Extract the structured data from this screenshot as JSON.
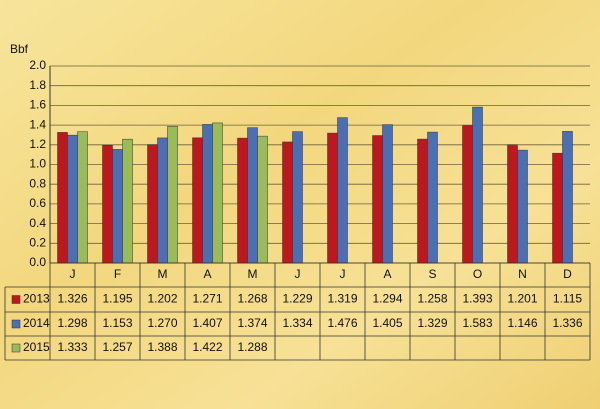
{
  "chart_data": {
    "type": "bar",
    "y_label": "Bbf",
    "categories": [
      "J",
      "F",
      "M",
      "A",
      "M",
      "J",
      "J",
      "A",
      "S",
      "O",
      "N",
      "D"
    ],
    "series": [
      {
        "name": "2013",
        "color": "#c0161e",
        "values": [
          1.326,
          1.195,
          1.202,
          1.271,
          1.268,
          1.229,
          1.319,
          1.294,
          1.258,
          1.393,
          1.201,
          1.115
        ],
        "value_labels": [
          "1.326",
          "1.195",
          "1.202",
          "1.271",
          "1.268",
          "1.229",
          "1.319",
          "1.294",
          "1.258",
          "1.393",
          "1.201",
          "1.115"
        ]
      },
      {
        "name": "2014",
        "color": "#4a6fb5",
        "values": [
          1.298,
          1.153,
          1.27,
          1.407,
          1.374,
          1.334,
          1.476,
          1.405,
          1.329,
          1.583,
          1.146,
          1.336
        ],
        "value_labels": [
          "1.298",
          "1.153",
          "1.270",
          "1.407",
          "1.374",
          "1.334",
          "1.476",
          "1.405",
          "1.329",
          "1.583",
          "1.146",
          "1.336"
        ]
      },
      {
        "name": "2015",
        "color": "#9bbb59",
        "values": [
          1.333,
          1.257,
          1.388,
          1.422,
          1.288,
          null,
          null,
          null,
          null,
          null,
          null,
          null
        ],
        "value_labels": [
          "1.333",
          "1.257",
          "1.388",
          "1.422",
          "1.288",
          null,
          null,
          null,
          null,
          null,
          null,
          null
        ]
      }
    ],
    "ylim": [
      0,
      2
    ],
    "yticks": [
      {
        "value": 0,
        "label": "0.0"
      },
      0.2,
      0.4,
      0.6,
      0.8,
      {
        "value": 1,
        "label": "1.0"
      },
      1.2,
      1.4,
      1.6,
      1.8,
      {
        "value": 2,
        "label": "2.0"
      }
    ],
    "grid": true
  }
}
